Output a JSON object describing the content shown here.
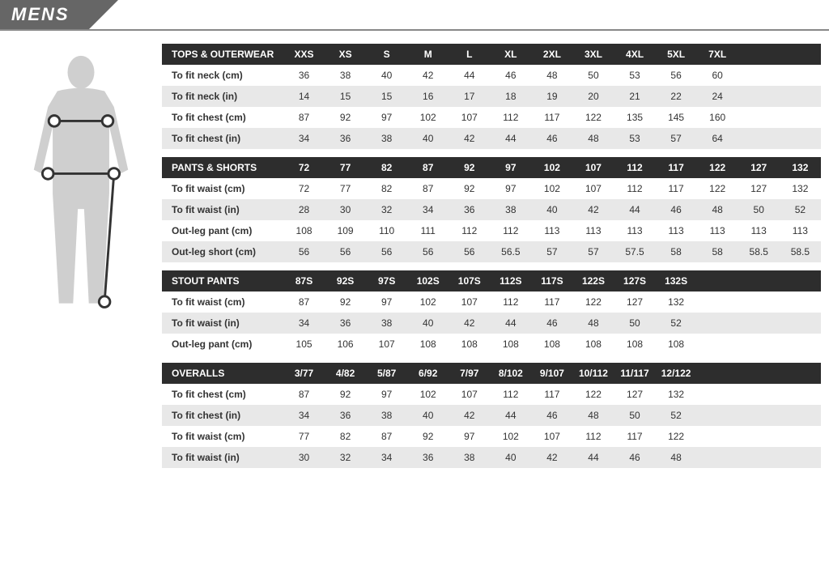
{
  "title": "MENS",
  "colors": {
    "header_bg": "#666666",
    "table_header_bg": "#2d2d2d",
    "table_header_fg": "#ffffff",
    "row_even_bg": "#e8e8e8",
    "row_odd_bg": "#ffffff",
    "figure_fill": "#cfcfcf",
    "figure_stroke": "#333333"
  },
  "figure": {
    "type": "body-silhouette",
    "measure_points": [
      "chest",
      "waist",
      "hip",
      "outseam"
    ]
  },
  "tables": [
    {
      "title": "TOPS & OUTERWEAR",
      "sizes": [
        "XXS",
        "XS",
        "S",
        "M",
        "L",
        "XL",
        "2XL",
        "3XL",
        "4XL",
        "5XL",
        "7XL",
        "",
        ""
      ],
      "rows": [
        {
          "label": "To fit neck (cm)",
          "vals": [
            "36",
            "38",
            "40",
            "42",
            "44",
            "46",
            "48",
            "50",
            "53",
            "56",
            "60",
            "",
            ""
          ]
        },
        {
          "label": "To fit neck (in)",
          "vals": [
            "14",
            "15",
            "15",
            "16",
            "17",
            "18",
            "19",
            "20",
            "21",
            "22",
            "24",
            "",
            ""
          ]
        },
        {
          "label": "To fit chest (cm)",
          "vals": [
            "87",
            "92",
            "97",
            "102",
            "107",
            "112",
            "117",
            "122",
            "135",
            "145",
            "160",
            "",
            ""
          ]
        },
        {
          "label": "To fit chest (in)",
          "vals": [
            "34",
            "36",
            "38",
            "40",
            "42",
            "44",
            "46",
            "48",
            "53",
            "57",
            "64",
            "",
            ""
          ]
        }
      ]
    },
    {
      "title": "PANTS & SHORTS",
      "sizes": [
        "72",
        "77",
        "82",
        "87",
        "92",
        "97",
        "102",
        "107",
        "112",
        "117",
        "122",
        "127",
        "132"
      ],
      "rows": [
        {
          "label": "To fit waist (cm)",
          "vals": [
            "72",
            "77",
            "82",
            "87",
            "92",
            "97",
            "102",
            "107",
            "112",
            "117",
            "122",
            "127",
            "132"
          ]
        },
        {
          "label": "To fit waist (in)",
          "vals": [
            "28",
            "30",
            "32",
            "34",
            "36",
            "38",
            "40",
            "42",
            "44",
            "46",
            "48",
            "50",
            "52"
          ]
        },
        {
          "label": "Out-leg pant (cm)",
          "vals": [
            "108",
            "109",
            "110",
            "111",
            "112",
            "112",
            "113",
            "113",
            "113",
            "113",
            "113",
            "113",
            "113"
          ]
        },
        {
          "label": "Out-leg short (cm)",
          "vals": [
            "56",
            "56",
            "56",
            "56",
            "56",
            "56.5",
            "57",
            "57",
            "57.5",
            "58",
            "58",
            "58.5",
            "58.5"
          ]
        }
      ]
    },
    {
      "title": "STOUT PANTS",
      "sizes": [
        "87S",
        "92S",
        "97S",
        "102S",
        "107S",
        "112S",
        "117S",
        "122S",
        "127S",
        "132S",
        "",
        "",
        ""
      ],
      "rows": [
        {
          "label": "To fit waist (cm)",
          "vals": [
            "87",
            "92",
            "97",
            "102",
            "107",
            "112",
            "117",
            "122",
            "127",
            "132",
            "",
            "",
            ""
          ]
        },
        {
          "label": "To fit waist (in)",
          "vals": [
            "34",
            "36",
            "38",
            "40",
            "42",
            "44",
            "46",
            "48",
            "50",
            "52",
            "",
            "",
            ""
          ]
        },
        {
          "label": "Out-leg pant (cm)",
          "vals": [
            "105",
            "106",
            "107",
            "108",
            "108",
            "108",
            "108",
            "108",
            "108",
            "108",
            "",
            "",
            ""
          ]
        }
      ]
    },
    {
      "title": "OVERALLS",
      "sizes": [
        "3/77",
        "4/82",
        "5/87",
        "6/92",
        "7/97",
        "8/102",
        "9/107",
        "10/112",
        "11/117",
        "12/122",
        "",
        "",
        ""
      ],
      "rows": [
        {
          "label": "To fit chest (cm)",
          "vals": [
            "87",
            "92",
            "97",
            "102",
            "107",
            "112",
            "117",
            "122",
            "127",
            "132",
            "",
            "",
            ""
          ]
        },
        {
          "label": "To fit chest (in)",
          "vals": [
            "34",
            "36",
            "38",
            "40",
            "42",
            "44",
            "46",
            "48",
            "50",
            "52",
            "",
            "",
            ""
          ]
        },
        {
          "label": "To fit waist (cm)",
          "vals": [
            "77",
            "82",
            "87",
            "92",
            "97",
            "102",
            "107",
            "112",
            "117",
            "122",
            "",
            "",
            ""
          ]
        },
        {
          "label": "To fit waist (in)",
          "vals": [
            "30",
            "32",
            "34",
            "36",
            "38",
            "40",
            "42",
            "44",
            "46",
            "48",
            "",
            "",
            ""
          ]
        }
      ]
    }
  ]
}
